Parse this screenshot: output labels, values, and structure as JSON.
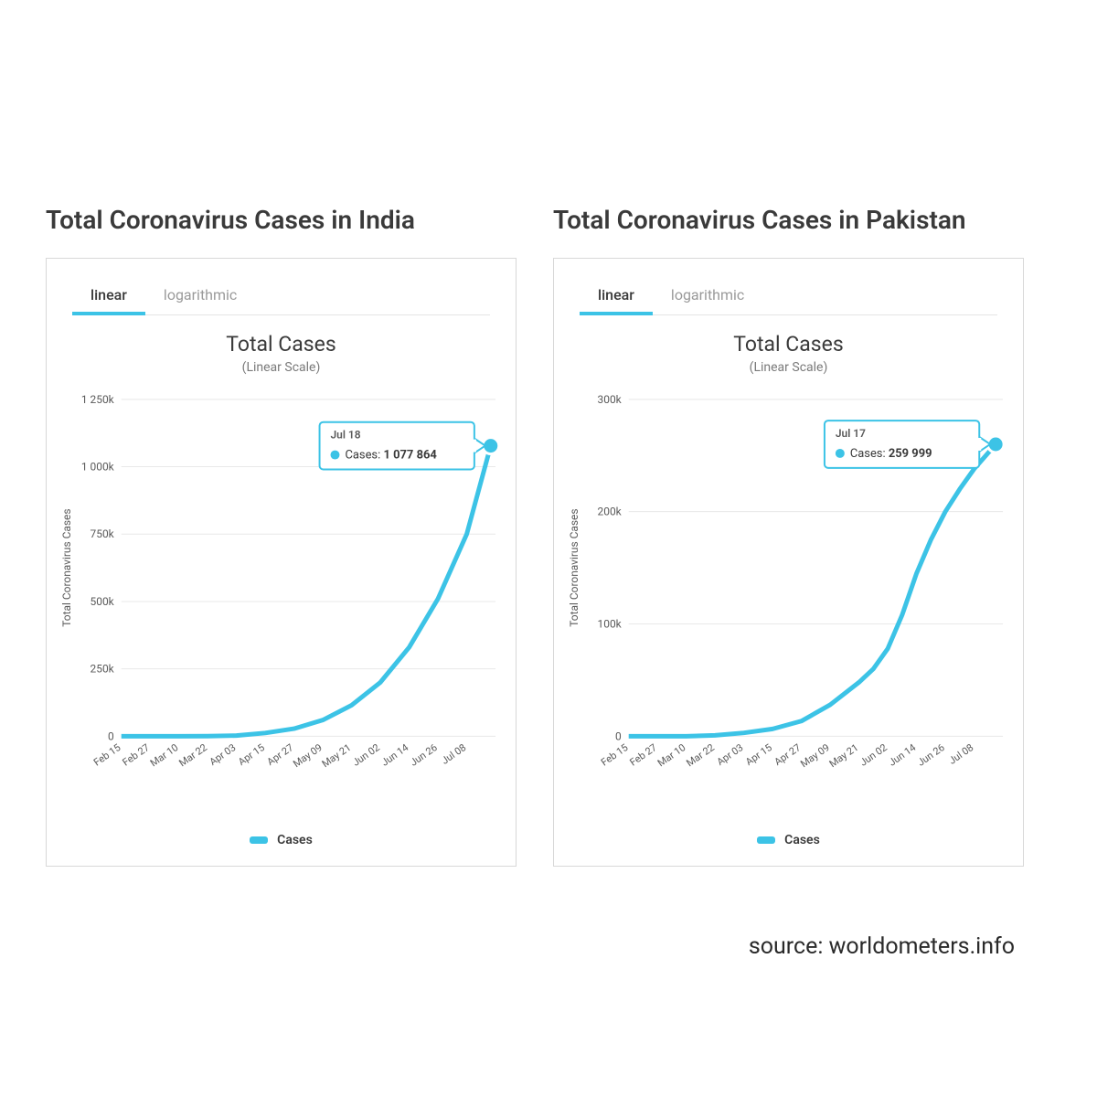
{
  "source_text": "source: worldometers.info",
  "panels": [
    {
      "title": "Total Coronavirus Cases in India",
      "tabs": {
        "linear": "linear",
        "logarithmic": "logarithmic",
        "active": "linear"
      },
      "chart": {
        "type": "line",
        "title": "Total Cases",
        "subtitle": "(Linear Scale)",
        "line_color": "#3cc3e6",
        "line_width": 5,
        "marker_color": "#3cc3e6",
        "marker_border": "#ffffff",
        "background_color": "#ffffff",
        "grid_color": "#e8e8e8",
        "yaxis": {
          "title": "Total Coronavirus Cases",
          "min": 0,
          "max": 1250000,
          "ticks": [
            0,
            250000,
            500000,
            750000,
            1000000,
            1250000
          ],
          "tick_labels": [
            "0",
            "250k",
            "500k",
            "750k",
            "1 000k",
            "1 250k"
          ]
        },
        "xaxis": {
          "min": 0,
          "max": 156,
          "ticks": [
            0,
            12,
            24,
            36,
            48,
            60,
            72,
            84,
            96,
            108,
            120,
            132,
            144
          ],
          "tick_labels": [
            "Feb 15",
            "Feb 27",
            "Mar 10",
            "Mar 22",
            "Apr 03",
            "Apr 15",
            "Apr 27",
            "May 09",
            "May 21",
            "Jun 02",
            "Jun 14",
            "Jun 26",
            "Jul 08"
          ]
        },
        "series": {
          "name": "Cases",
          "points": [
            [
              0,
              3
            ],
            [
              12,
              3
            ],
            [
              24,
              45
            ],
            [
              36,
              350
            ],
            [
              48,
              2500
            ],
            [
              60,
              12000
            ],
            [
              72,
              28000
            ],
            [
              84,
              60000
            ],
            [
              96,
              115000
            ],
            [
              108,
              200000
            ],
            [
              120,
              330000
            ],
            [
              132,
              510000
            ],
            [
              144,
              750000
            ],
            [
              154,
              1077864
            ]
          ]
        },
        "tooltip": {
          "date": "Jul 18",
          "label": "Cases:",
          "value": "1 077 864",
          "at_x": 154,
          "at_y": 1077864
        },
        "legend_label": "Cases"
      }
    },
    {
      "title": "Total Coronavirus Cases in Pakistan",
      "tabs": {
        "linear": "linear",
        "logarithmic": "logarithmic",
        "active": "linear"
      },
      "chart": {
        "type": "line",
        "title": "Total Cases",
        "subtitle": "(Linear Scale)",
        "line_color": "#3cc3e6",
        "line_width": 5,
        "marker_color": "#3cc3e6",
        "marker_border": "#ffffff",
        "background_color": "#ffffff",
        "grid_color": "#e8e8e8",
        "yaxis": {
          "title": "Total Coronavirus Cases",
          "min": 0,
          "max": 300000,
          "ticks": [
            0,
            100000,
            200000,
            300000
          ],
          "tick_labels": [
            "0",
            "100k",
            "200k",
            "300k"
          ]
        },
        "xaxis": {
          "min": 0,
          "max": 156,
          "ticks": [
            0,
            12,
            24,
            36,
            48,
            60,
            72,
            84,
            96,
            108,
            120,
            132,
            144
          ],
          "tick_labels": [
            "Feb 15",
            "Feb 27",
            "Mar 10",
            "Mar 22",
            "Apr 03",
            "Apr 15",
            "Apr 27",
            "May 09",
            "May 21",
            "Jun 02",
            "Jun 14",
            "Jun 26",
            "Jul 08"
          ]
        },
        "series": {
          "name": "Cases",
          "points": [
            [
              0,
              2
            ],
            [
              12,
              2
            ],
            [
              24,
              20
            ],
            [
              36,
              800
            ],
            [
              48,
              3000
            ],
            [
              60,
              6500
            ],
            [
              72,
              13500
            ],
            [
              84,
              28000
            ],
            [
              96,
              48000
            ],
            [
              102,
              60000
            ],
            [
              108,
              78000
            ],
            [
              114,
              108000
            ],
            [
              120,
              145000
            ],
            [
              126,
              175000
            ],
            [
              132,
              200000
            ],
            [
              138,
              220000
            ],
            [
              144,
              238000
            ],
            [
              153,
              259999
            ]
          ]
        },
        "tooltip": {
          "date": "Jul 17",
          "label": "Cases:",
          "value": "259 999",
          "at_x": 153,
          "at_y": 259999
        },
        "legend_label": "Cases"
      }
    }
  ]
}
